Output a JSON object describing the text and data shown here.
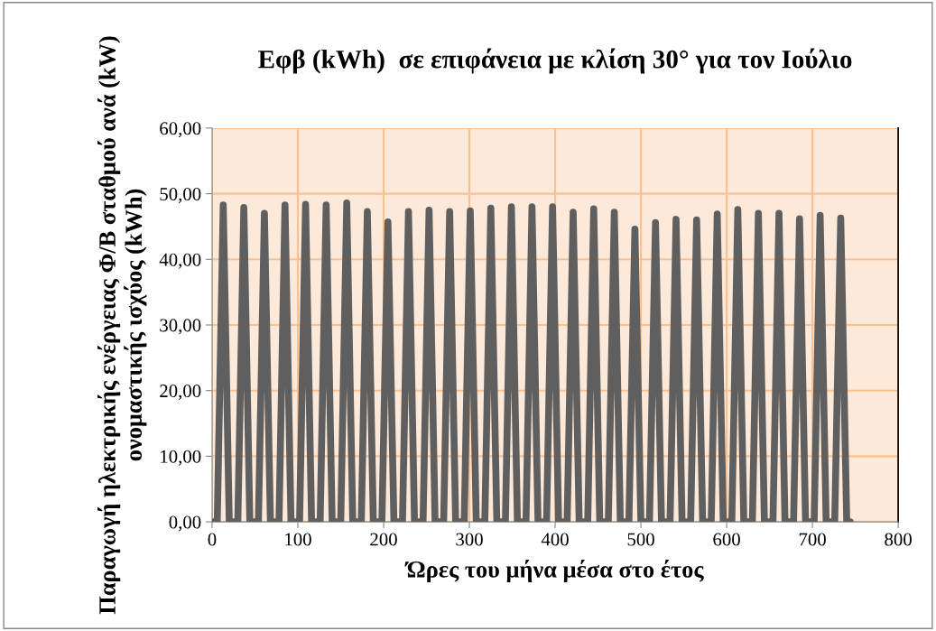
{
  "chart_data": {
    "type": "line",
    "title": "Εφβ (kWh)  σε επιφάνεια με κλίση 30° για τον Ιούλιο",
    "xlabel": "Ώρες του μήνα μέσα στο έτος",
    "ylabel": "Παραγωγή ηλεκτρικής ενέργειας Φ/Β σταθμού ανά (kW) ονομαστικής ισχύος (kWh)",
    "xlim": [
      0,
      800
    ],
    "xticks": [
      0,
      100,
      200,
      300,
      400,
      500,
      600,
      700,
      800
    ],
    "ylim": [
      0,
      60
    ],
    "yticks": [
      {
        "value": 0,
        "label": "0,00"
      },
      {
        "value": 10,
        "label": "10,00"
      },
      {
        "value": 20,
        "label": "20,00"
      },
      {
        "value": 30,
        "label": "30,00"
      },
      {
        "value": 40,
        "label": "40,00"
      },
      {
        "value": 50,
        "label": "50,00"
      },
      {
        "value": 60,
        "label": "60,00"
      }
    ],
    "grid": true,
    "legend": false,
    "marker": "none",
    "line_style": "solid",
    "series": [
      {
        "color": "#5f5f5f",
        "x": [
          0,
          6,
          13,
          20,
          30,
          37,
          44,
          54,
          61,
          68,
          78,
          85,
          92,
          102,
          109,
          116,
          126,
          133,
          140,
          150,
          157,
          164,
          174,
          181,
          188,
          198,
          205,
          212,
          222,
          229,
          236,
          246,
          253,
          260,
          270,
          277,
          284,
          294,
          301,
          308,
          318,
          325,
          332,
          342,
          349,
          356,
          366,
          373,
          380,
          390,
          397,
          404,
          414,
          421,
          428,
          438,
          445,
          452,
          462,
          469,
          476,
          486,
          493,
          500,
          510,
          517,
          524,
          534,
          541,
          548,
          558,
          565,
          572,
          582,
          589,
          596,
          606,
          613,
          620,
          630,
          637,
          644,
          654,
          661,
          668,
          678,
          685,
          692,
          702,
          709,
          716,
          726,
          733,
          740,
          744
        ],
        "values": [
          0,
          0,
          48.3,
          0,
          0,
          47.9,
          0,
          0,
          47.0,
          0,
          0,
          48.3,
          0,
          0,
          48.4,
          0,
          0,
          48.3,
          0,
          0,
          48.6,
          0,
          0,
          47.3,
          0,
          0,
          45.7,
          0,
          0,
          47.3,
          0,
          0,
          47.5,
          0,
          0,
          47.3,
          0,
          0,
          47.4,
          0,
          0,
          47.8,
          0,
          0,
          48.0,
          0,
          0,
          48.0,
          0,
          0,
          48.0,
          0,
          0,
          47.2,
          0,
          0,
          47.7,
          0,
          0,
          47.2,
          0,
          0,
          44.6,
          0,
          0,
          45.6,
          0,
          0,
          46.1,
          0,
          0,
          46.0,
          0,
          0,
          46.9,
          0,
          0,
          47.6,
          0,
          0,
          47.0,
          0,
          0,
          47.0,
          0,
          0,
          46.2,
          0,
          0,
          46.7,
          0,
          0,
          46.3,
          0,
          0
        ]
      }
    ]
  }
}
